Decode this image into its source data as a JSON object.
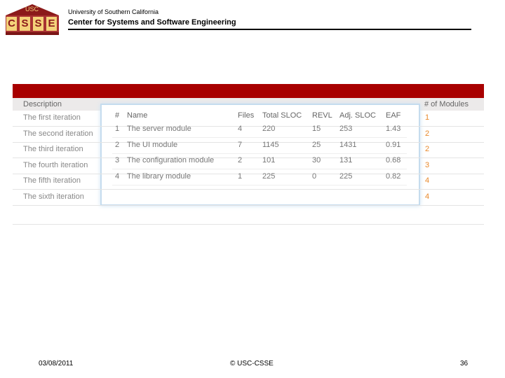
{
  "header": {
    "logo_top": "USC",
    "logo_letters": [
      "C",
      "S",
      "S",
      "E"
    ],
    "university": "University of Southern California",
    "center": "Center for Systems and Software Engineering"
  },
  "background_table": {
    "columns": [
      "Description",
      "# of Modules"
    ],
    "rows": [
      [
        "The first iteration",
        1
      ],
      [
        "The second iteration",
        2
      ],
      [
        "The third iteration",
        2
      ],
      [
        "The fourth iteration",
        3
      ],
      [
        "The fifth iteration",
        4
      ],
      [
        "The sixth iteration",
        4
      ]
    ]
  },
  "popup_table": {
    "columns": [
      "#",
      "Name",
      "Files",
      "Total SLOC",
      "REVL",
      "Adj. SLOC",
      "EAF"
    ],
    "rows": [
      [
        1,
        "The server module",
        4,
        220,
        15,
        253,
        1.43
      ],
      [
        2,
        "The UI module",
        7,
        1145,
        25,
        1431,
        0.91
      ],
      [
        3,
        "The configuration module",
        2,
        101,
        30,
        131,
        0.68
      ],
      [
        4,
        "The library module",
        1,
        225,
        0,
        225,
        0.82
      ]
    ]
  },
  "footer": {
    "date": "03/08/2011",
    "copyright": "© USC-CSSE",
    "page": "36"
  }
}
